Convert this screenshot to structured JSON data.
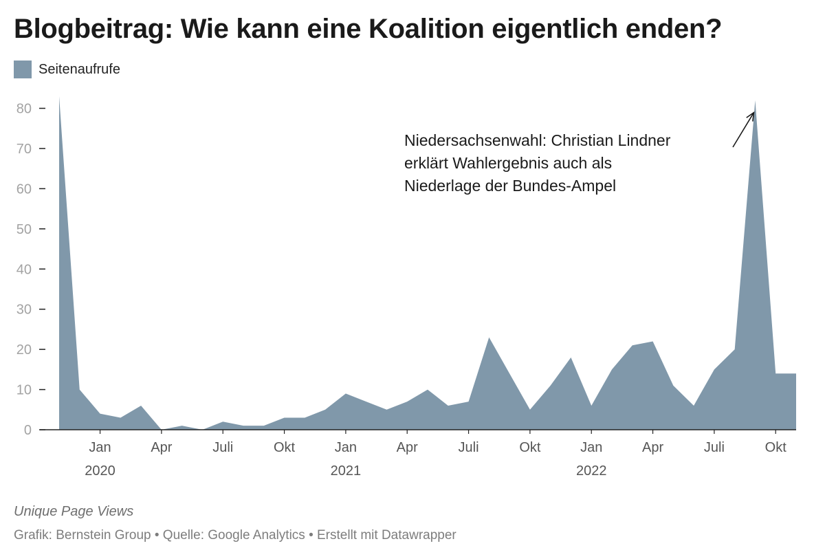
{
  "title": "Blogbeitrag: Wie kann eine Koalition eigentlich enden?",
  "legend": {
    "label": "Seitenaufrufe",
    "color": "#8098aa"
  },
  "chart_data": {
    "type": "area",
    "series": [
      {
        "name": "Seitenaufrufe",
        "color": "#8098aa",
        "x": [
          "2019-11",
          "2019-12",
          "2020-01",
          "2020-02",
          "2020-03",
          "2020-04",
          "2020-05",
          "2020-06",
          "2020-07",
          "2020-08",
          "2020-09",
          "2020-10",
          "2020-11",
          "2020-12",
          "2021-01",
          "2021-02",
          "2021-03",
          "2021-04",
          "2021-05",
          "2021-06",
          "2021-07",
          "2021-08",
          "2021-09",
          "2021-10",
          "2021-11",
          "2021-12",
          "2022-01",
          "2022-02",
          "2022-03",
          "2022-04",
          "2022-05",
          "2022-06",
          "2022-07",
          "2022-08",
          "2022-09",
          "2022-10",
          "2022-11"
        ],
        "values": [
          83,
          10,
          4,
          3,
          6,
          0,
          1,
          0,
          2,
          1,
          1,
          3,
          3,
          5,
          9,
          7,
          5,
          7,
          10,
          6,
          7,
          23,
          14,
          5,
          11,
          18,
          6,
          15,
          21,
          22,
          11,
          6,
          15,
          20,
          82,
          14,
          14
        ]
      }
    ],
    "y_ticks": [
      0,
      10,
      20,
      30,
      40,
      50,
      60,
      70,
      80
    ],
    "ylim": [
      0,
      83
    ],
    "x_tick_labels": [
      {
        "month": "2020-01",
        "label": "Jan",
        "year": "2020"
      },
      {
        "month": "2020-04",
        "label": "Apr",
        "year": ""
      },
      {
        "month": "2020-07",
        "label": "Juli",
        "year": ""
      },
      {
        "month": "2020-10",
        "label": "Okt",
        "year": ""
      },
      {
        "month": "2021-01",
        "label": "Jan",
        "year": "2021"
      },
      {
        "month": "2021-04",
        "label": "Apr",
        "year": ""
      },
      {
        "month": "2021-07",
        "label": "Juli",
        "year": ""
      },
      {
        "month": "2021-10",
        "label": "Okt",
        "year": ""
      },
      {
        "month": "2022-01",
        "label": "Jan",
        "year": "2022"
      },
      {
        "month": "2022-04",
        "label": "Apr",
        "year": ""
      },
      {
        "month": "2022-07",
        "label": "Juli",
        "year": ""
      },
      {
        "month": "2022-10",
        "label": "Okt",
        "year": ""
      }
    ],
    "annotation": {
      "lines": [
        "Niedersachsenwahl: Christian Lindner",
        "erklärt Wahlergebnis auch als",
        "Niederlage der Bundes-Ampel"
      ],
      "target_month": "2022-09",
      "target_value": 81
    },
    "grid": false,
    "legend_position": "top-left"
  },
  "footer": {
    "note": "Unique Page Views",
    "source": "Grafik: Bernstein Group • Quelle: Google Analytics • Erstellt mit Datawrapper"
  }
}
